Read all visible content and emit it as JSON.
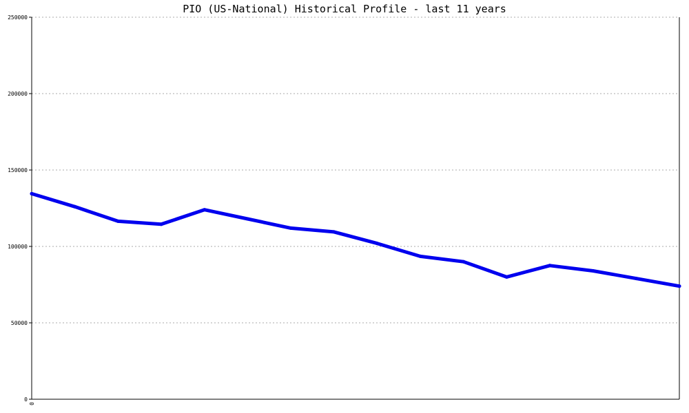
{
  "chart_data": {
    "type": "line",
    "title": "PIO (US-National) Historical Profile - last 11 years",
    "xlabel": "",
    "ylabel": "",
    "ylim": [
      0,
      250000
    ],
    "yticks": [
      "0",
      "50000",
      "100000",
      "150000",
      "200000",
      "250000"
    ],
    "xticks": [
      "0"
    ],
    "grid": true,
    "line_color": "#0000ee",
    "series": [
      {
        "values": [
          134500,
          126000,
          116500,
          114500,
          124000,
          118000,
          112000,
          109500,
          102000,
          93500,
          90000,
          80000,
          87500,
          84000,
          79000,
          74000
        ]
      }
    ]
  }
}
